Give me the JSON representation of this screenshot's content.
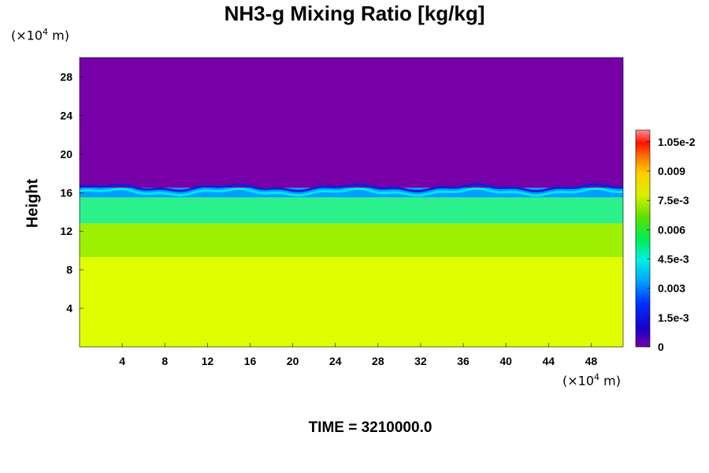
{
  "chart_data": {
    "type": "heatmap",
    "title": "NH3-g Mixing Ratio [kg/kg]",
    "ylabel": "Height",
    "x_unit": "(×10⁴ m)",
    "y_unit": "(×10⁴ m)",
    "x_unit_base": "(×10",
    "x_unit_exp": "4",
    "x_unit_tail": " m)",
    "y_unit_base": "(×10",
    "y_unit_exp": "4",
    "y_unit_tail": " m)",
    "xlim": [
      0,
      51
    ],
    "ylim": [
      0,
      30
    ],
    "xticks": [
      "4",
      "8",
      "12",
      "16",
      "20",
      "24",
      "28",
      "32",
      "36",
      "40",
      "44",
      "48"
    ],
    "yticks": [
      "4",
      "8",
      "12",
      "16",
      "20",
      "24",
      "28"
    ],
    "colorbar": {
      "range": [
        0,
        0.0111
      ],
      "tick_labels": [
        "1.05e-2",
        "0.009",
        "7.5e-3",
        "0.006",
        "4.5e-3",
        "0.003",
        "1.5e-3",
        "0"
      ],
      "tick_values": [
        0.0105,
        0.009,
        0.0075,
        0.006,
        0.0045,
        0.003,
        0.0015,
        0
      ]
    },
    "layers": [
      {
        "from_height": 0,
        "to_height": 9.3,
        "value": 0.0079,
        "color": "#dfff00"
      },
      {
        "from_height": 9.3,
        "to_height": 12.8,
        "value": 0.0068,
        "color": "#9df000"
      },
      {
        "from_height": 12.8,
        "to_height": 15.5,
        "value": 0.0044,
        "color": "#2bf08c"
      },
      {
        "from_height": 15.5,
        "to_height": 16.5,
        "value": 0.0015,
        "color": "#00a0ff"
      },
      {
        "from_height": 16.5,
        "to_height": 30,
        "value": 0,
        "color": "#7700a8"
      }
    ]
  },
  "time_label": "TIME = 3210000.0"
}
